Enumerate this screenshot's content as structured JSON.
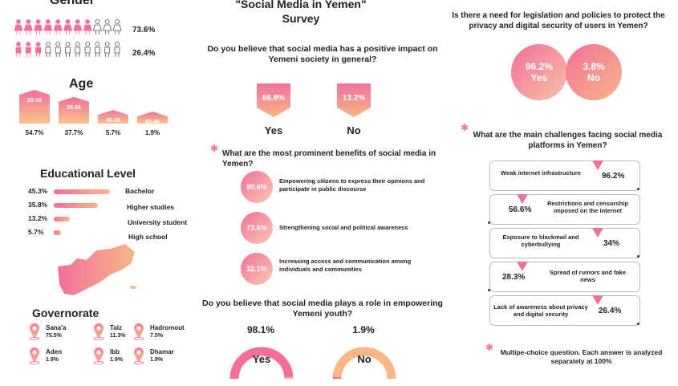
{
  "colors": {
    "pink": "#f36f9a",
    "peach": "#f7b787",
    "text": "#222222"
  },
  "gender": {
    "title": "Gender",
    "rows": [
      {
        "pct": "73.6%",
        "filled": 8,
        "total": 11
      },
      {
        "pct": "26.4%",
        "filled": 3,
        "total": 11
      }
    ]
  },
  "age": {
    "title": "Age",
    "groups": [
      {
        "label": "25-18",
        "pct": "54.7%",
        "value": 54.7
      },
      {
        "label": "35-26",
        "pct": "37.7%",
        "value": 37.7
      },
      {
        "label": "45-36",
        "pct": "5.7%",
        "value": 5.7
      },
      {
        "label": "65-46",
        "pct": "1.9%",
        "value": 1.9
      }
    ]
  },
  "education": {
    "title": "Educational Level",
    "items": [
      {
        "pct": "45.3%",
        "label": "Bachelor",
        "value": 45.3
      },
      {
        "pct": "35.8%",
        "label": "Higher studies",
        "value": 35.8
      },
      {
        "pct": "13.2%",
        "label": "University student",
        "value": 13.2
      },
      {
        "pct": "5.7%",
        "label": "High school",
        "value": 5.7
      }
    ]
  },
  "governorate": {
    "title": "Governorate",
    "items": [
      {
        "name": "Sana'a",
        "pct": "75.5%"
      },
      {
        "name": "Taiz",
        "pct": "11.3%"
      },
      {
        "name": "Hadromout",
        "pct": "7.5%"
      },
      {
        "name": "Aden",
        "pct": "1.9%"
      },
      {
        "name": "Ibb",
        "pct": "1.9%"
      },
      {
        "name": "Dhamar",
        "pct": "1.9%"
      }
    ]
  },
  "survey": {
    "title_line1": "\"Social Media in Yemen\"",
    "title_line2": "Survey"
  },
  "q_positive": {
    "question": "Do you believe that social media has a positive impact on Yemeni society in general?",
    "yes_pct": "86.8%",
    "yes_label": "Yes",
    "no_pct": "13.2%",
    "no_label": "No"
  },
  "benefits": {
    "question": "What are the most prominent benefits of social media in Yemen?",
    "items": [
      {
        "pct": "90.6%",
        "text": "Empowering citizens to express their opinions and participate in public discourse"
      },
      {
        "pct": "73.6%",
        "text": "Strengthening social and political awareness"
      },
      {
        "pct": "32.1%",
        "text": "Increasing access and communication among individuals and communities"
      }
    ]
  },
  "youth": {
    "question": "Do you believe that social media plays a role in empowering Yemeni youth?",
    "yes_pct": "98.1%",
    "yes_label": "Yes",
    "yes_value": 98.1,
    "no_pct": "1.9%",
    "no_label": "No",
    "no_value": 1.9
  },
  "legislation": {
    "question": "Is there a need for legislation and policies to protect the privacy and digital security of users in Yemen?",
    "yes_pct": "96.2%",
    "yes_label": "Yes",
    "no_pct": "3.8%",
    "no_label": "No"
  },
  "challenges": {
    "question": "What are the main challenges facing social media platforms in Yemen?",
    "items": [
      {
        "text": "Weak internet infrastructure",
        "pct": "96.2%"
      },
      {
        "text": "Restrictions and censorship imposed on the internet",
        "pct": "56.6%"
      },
      {
        "text": "Exposure to blackmail and cyberbullying",
        "pct": "34%"
      },
      {
        "text": "Spread of rumors and fake news",
        "pct": "28.3%"
      },
      {
        "text": "Lack of awareness about privacy and digital security",
        "pct": "26.4%"
      }
    ]
  },
  "footnote": "Multipe-choice question. Each answer is analyzed separately at 100%"
}
